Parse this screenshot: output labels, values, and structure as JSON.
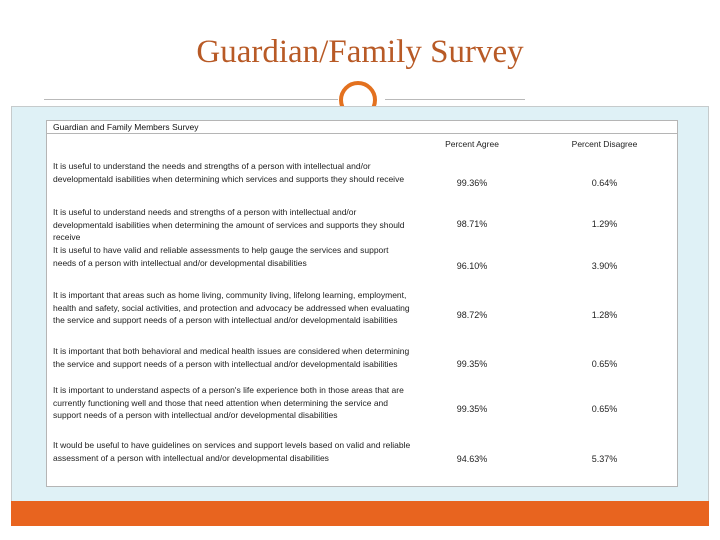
{
  "slide": {
    "title": "Guardian/Family Survey"
  },
  "table": {
    "caption": "Guardian and Family Members Survey",
    "col_agree": "Percent Agree",
    "col_disagree": "Percent Disagree",
    "rows": [
      {
        "statement": "It is useful to understand the needs and strengths of a person with intellectual and/or developmentald isabilities when determining which services and supports they should receive",
        "agree": "99.36%",
        "disagree": "0.64%"
      },
      {
        "statement": "It is useful to understand needs and strengths of a person with intellectual and/or developmentald isabilities when determining the amount of services and supports they should receive",
        "agree": "98.71%",
        "disagree": "1.29%"
      },
      {
        "statement": "It is useful to have valid and reliable assessments to help gauge the services and support needs of a person with intellectual and/or developmental disabilities",
        "agree": "96.10%",
        "disagree": "3.90%"
      },
      {
        "statement": "It is important that areas such as home living, community living, lifelong learning, employment, health and safety, social activities, and protection and advocacy be addressed when evaluating the service and support needs of a person with intellectual and/or developmentald isabilities",
        "agree": "98.72%",
        "disagree": "1.28%"
      },
      {
        "statement": "It is important that both behavioral and medical health issues are considered when determining the service and support needs of a person with intellectual and/or developmentald isabilities",
        "agree": "99.35%",
        "disagree": "0.65%"
      },
      {
        "statement": "It is important to understand aspects of a person's life experience both in those areas that are currently functioning well and those that need attention when determining the service and support needs of a person with intellectual and/or developmental disabilities",
        "agree": "99.35%",
        "disagree": "0.65%"
      },
      {
        "statement": "It would be useful to have guidelines on services and support levels based on valid and reliable assessment of a person with intellectual and/or developmental disabilities",
        "agree": "94.63%",
        "disagree": "5.37%"
      }
    ]
  }
}
